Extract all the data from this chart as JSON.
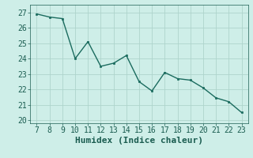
{
  "x": [
    7,
    8,
    9,
    10,
    11,
    12,
    13,
    14,
    15,
    16,
    17,
    18,
    19,
    20,
    21,
    22,
    23
  ],
  "y": [
    26.9,
    26.7,
    26.6,
    24.0,
    25.1,
    23.5,
    23.7,
    24.2,
    22.5,
    21.9,
    23.1,
    22.7,
    22.6,
    22.1,
    21.45,
    21.2,
    20.5
  ],
  "line_color": "#1a6b5e",
  "marker_color": "#1a6b5e",
  "bg_color": "#ceeee8",
  "grid_color": "#aed4cc",
  "xlabel": "Humidex (Indice chaleur)",
  "xlim": [
    6.5,
    23.5
  ],
  "ylim": [
    19.8,
    27.5
  ],
  "yticks": [
    20,
    21,
    22,
    23,
    24,
    25,
    26,
    27
  ],
  "xticks": [
    7,
    8,
    9,
    10,
    11,
    12,
    13,
    14,
    15,
    16,
    17,
    18,
    19,
    20,
    21,
    22,
    23
  ],
  "font_color": "#1a5c50",
  "fontsize": 7,
  "xlabel_fontsize": 8
}
